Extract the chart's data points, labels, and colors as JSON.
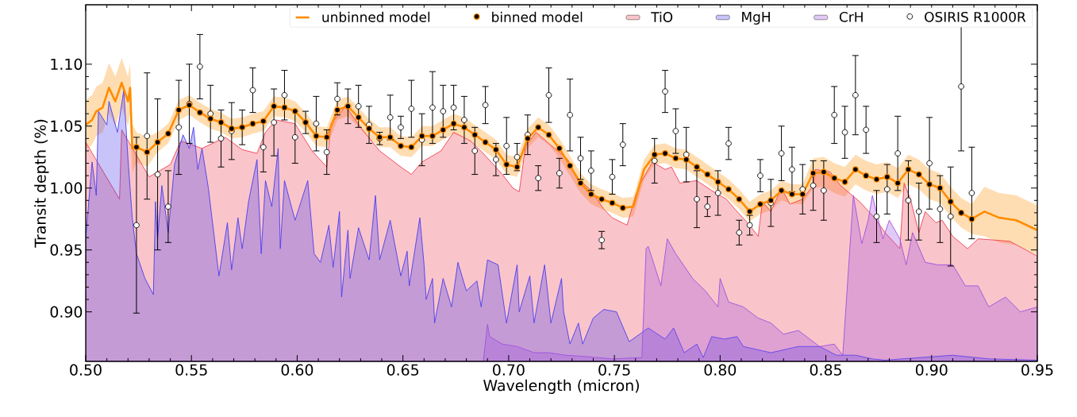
{
  "chart_data": {
    "type": "line",
    "xlabel": "Wavelength (micron)",
    "ylabel": "Transit depth (%)",
    "xlim": [
      0.5,
      0.95
    ],
    "ylim": [
      0.86,
      1.148
    ],
    "xticks": [
      {
        "value": 0.5,
        "label": "0.50"
      },
      0.55,
      {
        "value": 0.6,
        "label": "0.60"
      },
      0.65,
      {
        "value": 0.7,
        "label": "0.70"
      },
      0.75,
      {
        "value": 0.8,
        "label": "0.80"
      },
      0.85,
      {
        "value": 0.9,
        "label": "0.90"
      },
      0.95
    ],
    "yticks": [
      {
        "value": 0.9,
        "label": "0.90"
      },
      0.95,
      {
        "value": 1.0,
        "label": "1.00"
      },
      1.05,
      {
        "value": 1.1,
        "label": "1.10"
      }
    ],
    "legend": "top right",
    "x": [
      0.524,
      0.529,
      0.534,
      0.539,
      0.544,
      0.549,
      0.554,
      0.559,
      0.564,
      0.569,
      0.574,
      0.579,
      0.584,
      0.589,
      0.594,
      0.599,
      0.604,
      0.609,
      0.614,
      0.619,
      0.624,
      0.629,
      0.634,
      0.639,
      0.644,
      0.649,
      0.654,
      0.659,
      0.664,
      0.669,
      0.674,
      0.679,
      0.684,
      0.689,
      0.694,
      0.699,
      0.704,
      0.709,
      0.714,
      0.719,
      0.724,
      0.729,
      0.734,
      0.739,
      0.744,
      0.749,
      0.754,
      0.769,
      0.774,
      0.779,
      0.784,
      0.789,
      0.794,
      0.799,
      0.804,
      0.809,
      0.814,
      0.819,
      0.824,
      0.829,
      0.834,
      0.839,
      0.844,
      0.849,
      0.854,
      0.859,
      0.864,
      0.869,
      0.874,
      0.879,
      0.884,
      0.889,
      0.894,
      0.899,
      0.904,
      0.909,
      0.914,
      0.919
    ],
    "series": [
      {
        "name": "unbinned model",
        "color": "#ff8c00",
        "x": [
          0.5,
          0.503,
          0.505,
          0.508,
          0.511,
          0.514,
          0.517,
          0.52,
          0.521,
          0.522,
          0.524,
          0.529,
          0.534,
          0.539,
          0.544,
          0.549,
          0.554,
          0.559,
          0.564,
          0.569,
          0.574,
          0.579,
          0.584,
          0.589,
          0.594,
          0.599,
          0.604,
          0.609,
          0.614,
          0.619,
          0.624,
          0.629,
          0.634,
          0.639,
          0.644,
          0.649,
          0.654,
          0.659,
          0.664,
          0.669,
          0.674,
          0.679,
          0.684,
          0.689,
          0.694,
          0.699,
          0.704,
          0.709,
          0.714,
          0.719,
          0.724,
          0.729,
          0.734,
          0.739,
          0.744,
          0.749,
          0.754,
          0.759,
          0.764,
          0.769,
          0.774,
          0.779,
          0.784,
          0.789,
          0.794,
          0.799,
          0.804,
          0.809,
          0.814,
          0.819,
          0.824,
          0.829,
          0.834,
          0.839,
          0.844,
          0.849,
          0.854,
          0.859,
          0.864,
          0.869,
          0.874,
          0.879,
          0.884,
          0.889,
          0.894,
          0.899,
          0.904,
          0.909,
          0.914,
          0.919,
          0.925,
          0.932,
          0.94,
          0.95
        ],
        "values": [
          1.051,
          1.055,
          1.062,
          1.065,
          1.081,
          1.07,
          1.085,
          1.07,
          1.081,
          1.032,
          1.033,
          1.029,
          1.037,
          1.044,
          1.063,
          1.067,
          1.061,
          1.056,
          1.053,
          1.048,
          1.049,
          1.052,
          1.054,
          1.066,
          1.065,
          1.062,
          1.053,
          1.042,
          1.041,
          1.063,
          1.066,
          1.057,
          1.048,
          1.041,
          1.041,
          1.034,
          1.033,
          1.042,
          1.042,
          1.047,
          1.052,
          1.049,
          1.043,
          1.037,
          1.031,
          1.019,
          1.017,
          1.04,
          1.049,
          1.043,
          1.032,
          1.018,
          1.004,
          0.995,
          0.991,
          0.988,
          0.984,
          0.985,
          1.015,
          1.027,
          1.028,
          1.024,
          1.023,
          1.017,
          1.011,
          1.005,
          0.999,
          0.991,
          0.981,
          0.987,
          0.99,
          0.998,
          0.995,
          0.995,
          1.012,
          1.013,
          1.008,
          1.005,
          1.015,
          1.01,
          1.007,
          1.009,
          1.004,
          1.015,
          1.011,
          1.003,
          1.0,
          0.989,
          0.98,
          0.975,
          0.981,
          0.976,
          0.974,
          0.966
        ],
        "upper": [
          1.071,
          1.075,
          1.082,
          1.085,
          1.101,
          1.09,
          1.105,
          1.09,
          1.101,
          1.052,
          1.045,
          1.041,
          1.045,
          1.052,
          1.071,
          1.075,
          1.069,
          1.064,
          1.061,
          1.056,
          1.057,
          1.06,
          1.062,
          1.074,
          1.073,
          1.07,
          1.061,
          1.05,
          1.049,
          1.071,
          1.074,
          1.065,
          1.056,
          1.049,
          1.049,
          1.042,
          1.041,
          1.05,
          1.05,
          1.055,
          1.06,
          1.057,
          1.051,
          1.045,
          1.039,
          1.027,
          1.025,
          1.048,
          1.057,
          1.051,
          1.04,
          1.026,
          1.012,
          1.003,
          0.999,
          0.996,
          0.992,
          0.993,
          1.023,
          1.035,
          1.036,
          1.032,
          1.031,
          1.025,
          1.019,
          1.013,
          1.007,
          0.999,
          0.989,
          0.995,
          0.998,
          1.006,
          1.003,
          1.003,
          1.024,
          1.025,
          1.02,
          1.017,
          1.027,
          1.022,
          1.019,
          1.021,
          1.016,
          1.027,
          1.023,
          1.015,
          1.012,
          1.001,
          0.992,
          0.987,
          1.001,
          0.996,
          0.994,
          0.986
        ],
        "lower": [
          1.031,
          1.035,
          1.042,
          1.045,
          1.061,
          1.05,
          1.065,
          1.05,
          1.061,
          1.012,
          1.021,
          1.017,
          1.029,
          1.036,
          1.055,
          1.059,
          1.053,
          1.048,
          1.045,
          1.04,
          1.041,
          1.044,
          1.046,
          1.058,
          1.057,
          1.054,
          1.045,
          1.034,
          1.033,
          1.055,
          1.058,
          1.049,
          1.04,
          1.033,
          1.033,
          1.026,
          1.025,
          1.034,
          1.034,
          1.039,
          1.044,
          1.041,
          1.035,
          1.029,
          1.023,
          1.011,
          1.009,
          1.032,
          1.041,
          1.035,
          1.024,
          1.01,
          0.996,
          0.987,
          0.983,
          0.98,
          0.976,
          0.977,
          1.007,
          1.019,
          1.02,
          1.016,
          1.015,
          1.009,
          1.003,
          0.997,
          0.991,
          0.983,
          0.973,
          0.979,
          0.982,
          0.99,
          0.987,
          0.987,
          1.0,
          1.001,
          0.996,
          0.993,
          1.003,
          0.998,
          0.995,
          0.997,
          0.992,
          1.003,
          0.999,
          0.991,
          0.988,
          0.977,
          0.968,
          0.963,
          0.961,
          0.956,
          0.954,
          0.946
        ]
      },
      {
        "name": "binned model",
        "type": "scatter",
        "color": "#000000",
        "marker": "circle",
        "values": [
          1.033,
          1.029,
          1.037,
          1.044,
          1.063,
          1.067,
          1.061,
          1.056,
          1.053,
          1.048,
          1.049,
          1.052,
          1.054,
          1.066,
          1.065,
          1.062,
          1.053,
          1.042,
          1.041,
          1.063,
          1.066,
          1.057,
          1.048,
          1.041,
          1.041,
          1.034,
          1.033,
          1.042,
          1.042,
          1.047,
          1.052,
          1.049,
          1.043,
          1.037,
          1.031,
          1.019,
          1.017,
          1.04,
          1.049,
          1.043,
          1.032,
          1.018,
          1.004,
          0.995,
          0.991,
          0.988,
          0.984,
          1.027,
          1.028,
          1.024,
          1.023,
          1.017,
          1.011,
          1.005,
          0.999,
          0.991,
          0.981,
          0.987,
          0.99,
          0.998,
          0.995,
          0.995,
          1.012,
          1.013,
          1.008,
          1.005,
          1.015,
          1.01,
          1.007,
          1.009,
          1.004,
          1.015,
          1.011,
          1.003,
          1.0,
          0.989,
          0.98,
          0.975
        ]
      },
      {
        "name": "TiO",
        "type": "area",
        "color": "#f04050",
        "x": [
          0.5,
          0.516,
          0.517,
          0.53,
          0.54,
          0.545,
          0.555,
          0.566,
          0.574,
          0.581,
          0.585,
          0.59,
          0.599,
          0.607,
          0.614,
          0.616,
          0.623,
          0.63,
          0.639,
          0.649,
          0.654,
          0.659,
          0.668,
          0.674,
          0.682,
          0.688,
          0.697,
          0.702,
          0.705,
          0.708,
          0.713,
          0.719,
          0.728,
          0.732,
          0.739,
          0.745,
          0.749,
          0.756,
          0.76,
          0.763,
          0.768,
          0.774,
          0.777,
          0.781,
          0.789,
          0.796,
          0.803,
          0.807,
          0.814,
          0.818,
          0.82,
          0.824,
          0.829,
          0.833,
          0.839,
          0.844,
          0.845,
          0.852,
          0.857,
          0.866,
          0.873,
          0.878,
          0.885,
          0.887,
          0.89,
          0.894,
          0.897,
          0.902,
          0.905,
          0.91,
          0.917,
          0.922,
          0.937,
          0.95
        ],
        "values": [
          1.037,
          0.991,
          1.047,
          1.009,
          1.019,
          1.038,
          1.032,
          1.041,
          1.031,
          1.028,
          1.045,
          1.055,
          1.052,
          1.03,
          1.017,
          1.052,
          1.066,
          1.049,
          1.03,
          1.017,
          1.011,
          1.021,
          1.03,
          1.045,
          1.038,
          1.028,
          1.011,
          1.0,
          0.997,
          1.034,
          1.045,
          1.036,
          1.023,
          1.009,
          0.998,
          0.983,
          0.976,
          0.97,
          0.994,
          1.006,
          1.021,
          1.015,
          1.017,
          1.004,
          1.006,
          0.998,
          0.991,
          0.983,
          0.97,
          0.961,
          0.989,
          0.981,
          1.0,
          0.987,
          0.991,
          1.002,
          1.015,
          1.013,
          1.002,
          0.989,
          0.976,
          0.964,
          0.951,
          1.004,
          0.991,
          0.964,
          0.981,
          0.972,
          0.974,
          0.961,
          0.951,
          0.959,
          0.957,
          0.945
        ]
      },
      {
        "name": "MgH",
        "type": "area",
        "color": "#4a3cf0",
        "x": [
          0.5,
          0.503,
          0.505,
          0.506,
          0.51,
          0.511,
          0.515,
          0.518,
          0.52,
          0.522,
          0.524,
          0.528,
          0.532,
          0.533,
          0.534,
          0.536,
          0.539,
          0.542,
          0.546,
          0.549,
          0.551,
          0.553,
          0.555,
          0.558,
          0.563,
          0.567,
          0.569,
          0.572,
          0.574,
          0.577,
          0.581,
          0.583,
          0.585,
          0.588,
          0.591,
          0.592,
          0.594,
          0.599,
          0.605,
          0.608,
          0.611,
          0.615,
          0.617,
          0.62,
          0.621,
          0.624,
          0.625,
          0.629,
          0.634,
          0.637,
          0.639,
          0.644,
          0.649,
          0.652,
          0.653,
          0.658,
          0.66,
          0.661,
          0.664,
          0.665,
          0.669,
          0.673,
          0.676,
          0.68,
          0.685,
          0.687,
          0.69,
          0.695,
          0.699,
          0.704,
          0.705,
          0.71,
          0.712,
          0.717,
          0.72,
          0.725,
          0.726,
          0.729,
          0.733,
          0.735,
          0.74,
          0.745,
          0.751,
          0.757,
          0.762,
          0.766,
          0.774,
          0.778,
          0.783,
          0.789,
          0.792,
          0.796,
          0.802,
          0.808,
          0.811,
          0.824,
          0.837,
          0.847,
          0.855,
          0.864,
          0.872,
          0.878,
          0.91,
          0.927,
          0.95
        ],
        "values": [
          0.959,
          1.021,
          0.994,
          1.062,
          1.051,
          1.07,
          1.045,
          1.079,
          1.023,
          0.976,
          0.947,
          0.927,
          0.914,
          0.989,
          0.959,
          1.002,
          0.964,
          1.019,
          1.043,
          1.032,
          1.049,
          1.015,
          1.032,
          1.0,
          0.929,
          0.972,
          0.934,
          0.976,
          0.951,
          0.989,
          1.023,
          0.947,
          1.006,
          0.985,
          1.032,
          0.951,
          1.006,
          0.974,
          1.006,
          0.947,
          0.94,
          0.97,
          0.936,
          0.981,
          0.912,
          0.966,
          0.927,
          0.968,
          0.942,
          0.994,
          0.942,
          0.974,
          0.929,
          0.949,
          0.921,
          0.976,
          0.938,
          0.91,
          0.927,
          0.891,
          0.927,
          0.904,
          0.94,
          0.917,
          0.925,
          0.904,
          0.942,
          0.938,
          0.891,
          0.938,
          0.9,
          0.929,
          0.891,
          0.938,
          0.891,
          0.927,
          0.9,
          0.874,
          0.891,
          0.874,
          0.895,
          0.902,
          0.9,
          0.876,
          0.882,
          0.887,
          0.878,
          0.887,
          0.867,
          0.874,
          0.863,
          0.88,
          0.878,
          0.88,
          0.872,
          0.867,
          0.872,
          0.872,
          0.865,
          0.865,
          0.862,
          0.861,
          0.865,
          0.862,
          0.861
        ]
      },
      {
        "name": "CrH",
        "type": "area",
        "color": "#a050e0",
        "x": [
          0.688,
          0.69,
          0.691,
          0.697,
          0.704,
          0.712,
          0.719,
          0.727,
          0.736,
          0.749,
          0.762,
          0.763,
          0.765,
          0.766,
          0.772,
          0.775,
          0.779,
          0.787,
          0.793,
          0.799,
          0.8,
          0.804,
          0.811,
          0.818,
          0.824,
          0.83,
          0.837,
          0.847,
          0.854,
          0.858,
          0.863,
          0.867,
          0.87,
          0.872,
          0.877,
          0.88,
          0.885,
          0.888,
          0.891,
          0.897,
          0.903,
          0.91,
          0.916,
          0.922,
          0.927,
          0.935,
          0.942,
          0.95
        ],
        "values": [
          0.86,
          0.89,
          0.88,
          0.874,
          0.872,
          0.867,
          0.867,
          0.865,
          0.864,
          0.862,
          0.863,
          0.863,
          0.951,
          0.953,
          0.921,
          0.959,
          0.947,
          0.927,
          0.917,
          0.904,
          0.927,
          0.908,
          0.904,
          0.895,
          0.891,
          0.882,
          0.885,
          0.872,
          0.874,
          0.865,
          0.994,
          0.955,
          0.974,
          0.994,
          0.959,
          0.974,
          0.959,
          0.938,
          0.964,
          0.94,
          0.938,
          0.938,
          0.921,
          0.921,
          0.904,
          0.912,
          0.9,
          0.904
        ]
      },
      {
        "name": "OSIRIS R1000R",
        "type": "scatter",
        "color": "#000000",
        "marker": "circle",
        "values": [
          0.97,
          1.042,
          1.011,
          0.985,
          1.049,
          1.068,
          1.098,
          1.06,
          1.04,
          1.046,
          1.049,
          1.079,
          1.033,
          1.053,
          1.075,
          1.041,
          1.053,
          1.052,
          1.029,
          1.072,
          1.066,
          1.066,
          1.051,
          1.04,
          1.057,
          1.049,
          1.064,
          1.039,
          1.065,
          1.062,
          1.065,
          1.055,
          1.03,
          1.067,
          1.023,
          1.034,
          1.025,
          1.043,
          1.008,
          1.075,
          1.012,
          1.059,
          1.024,
          1.014,
          0.958,
          1.009,
          1.035,
          1.022,
          1.078,
          1.046,
          1.027,
          0.991,
          0.985,
          0.996,
          1.036,
          0.964,
          0.97,
          1.01,
          0.988,
          1.028,
          1.015,
          0.999,
          1.002,
          0.998,
          1.059,
          1.045,
          1.075,
          1.047,
          0.977,
          0.999,
          1.028,
          0.99,
          0.981,
          1.02,
          0.983,
          0.977,
          1.082,
          0.996
        ],
        "errors": [
          0.071,
          0.051,
          0.061,
          0.029,
          0.038,
          0.032,
          0.026,
          0.023,
          0.023,
          0.023,
          0.014,
          0.018,
          0.02,
          0.027,
          0.02,
          0.021,
          0.009,
          0.022,
          0.018,
          0.013,
          0.014,
          0.017,
          0.015,
          0.005,
          0.018,
          0.009,
          0.023,
          0.021,
          0.029,
          0.021,
          0.018,
          0.019,
          0.019,
          0.015,
          0.013,
          0.023,
          0.011,
          0.016,
          0.01,
          0.022,
          0.012,
          0.029,
          0.017,
          0.016,
          0.007,
          0.014,
          0.017,
          0.018,
          0.017,
          0.018,
          0.022,
          0.023,
          0.008,
          0.018,
          0.013,
          0.01,
          0.008,
          0.013,
          0.019,
          0.022,
          0.018,
          0.02,
          0.02,
          0.024,
          0.023,
          0.021,
          0.032,
          0.019,
          0.021,
          0.02,
          0.03,
          0.032,
          0.023,
          0.037,
          0.027,
          0.04,
          0.052,
          0.037
        ]
      }
    ]
  }
}
